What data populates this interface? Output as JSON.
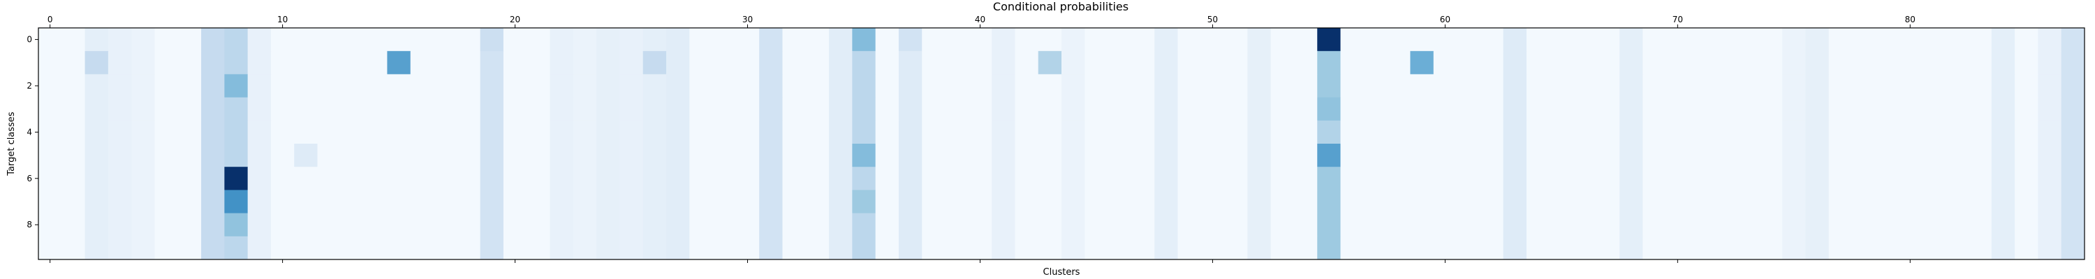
{
  "chart_data": {
    "type": "heatmap",
    "title": "Conditional probabilities",
    "xlabel": "Clusters",
    "ylabel": "Target classes",
    "x_axis_position": "top",
    "x_range": [
      -0.5,
      87.5
    ],
    "y_range": [
      9.5,
      -0.5
    ],
    "x_ticks": [
      0,
      10,
      20,
      30,
      40,
      50,
      60,
      70,
      80
    ],
    "y_ticks": [
      0,
      2,
      4,
      6,
      8
    ],
    "n_clusters": 88,
    "n_classes": 10,
    "colormap": "Blues",
    "color_range": [
      0,
      0.16
    ],
    "notable_cells": [
      {
        "row": 0,
        "col": 55,
        "value": 0.16
      },
      {
        "row": 6,
        "col": 8,
        "value": 0.16
      },
      {
        "row": 1,
        "col": 15,
        "value": 0.09
      },
      {
        "row": 1,
        "col": 59,
        "value": 0.08
      },
      {
        "row": 5,
        "col": 55,
        "value": 0.09
      },
      {
        "row": 0,
        "col": 35,
        "value": 0.07
      },
      {
        "row": 5,
        "col": 35,
        "value": 0.07
      },
      {
        "row": 7,
        "col": 8,
        "value": 0.1
      }
    ],
    "col_profiles": [
      {
        "col": 2,
        "value": 0.015
      },
      {
        "col": 3,
        "value": 0.012
      },
      {
        "col": 4,
        "value": 0.01
      },
      {
        "col": 7,
        "value": 0.04
      },
      {
        "col": 8,
        "value": 0.045
      },
      {
        "col": 9,
        "value": 0.012
      },
      {
        "col": 19,
        "value": 0.03
      },
      {
        "col": 22,
        "value": 0.012
      },
      {
        "col": 23,
        "value": 0.01
      },
      {
        "col": 24,
        "value": 0.014
      },
      {
        "col": 25,
        "value": 0.012
      },
      {
        "col": 26,
        "value": 0.015
      },
      {
        "col": 27,
        "value": 0.018
      },
      {
        "col": 31,
        "value": 0.03
      },
      {
        "col": 34,
        "value": 0.018
      },
      {
        "col": 35,
        "value": 0.045
      },
      {
        "col": 37,
        "value": 0.02
      },
      {
        "col": 41,
        "value": 0.012
      },
      {
        "col": 44,
        "value": 0.01
      },
      {
        "col": 48,
        "value": 0.015
      },
      {
        "col": 52,
        "value": 0.014
      },
      {
        "col": 55,
        "value": 0.06
      },
      {
        "col": 63,
        "value": 0.02
      },
      {
        "col": 68,
        "value": 0.015
      },
      {
        "col": 75,
        "value": 0.01
      },
      {
        "col": 76,
        "value": 0.014
      },
      {
        "col": 84,
        "value": 0.015
      },
      {
        "col": 86,
        "value": 0.012
      },
      {
        "col": 87,
        "value": 0.03
      }
    ],
    "extra_cells": [
      {
        "row": 1,
        "col": 2,
        "value": 0.04
      },
      {
        "row": 1,
        "col": 26,
        "value": 0.04
      },
      {
        "row": 1,
        "col": 43,
        "value": 0.05
      },
      {
        "row": 5,
        "col": 11,
        "value": 0.02
      },
      {
        "row": 2,
        "col": 8,
        "value": 0.07
      },
      {
        "row": 8,
        "col": 8,
        "value": 0.065
      },
      {
        "row": 7,
        "col": 35,
        "value": 0.06
      },
      {
        "row": 3,
        "col": 55,
        "value": 0.065
      },
      {
        "row": 4,
        "col": 55,
        "value": 0.05
      },
      {
        "row": 0,
        "col": 19,
        "value": 0.035
      },
      {
        "row": 0,
        "col": 37,
        "value": 0.03
      }
    ]
  }
}
